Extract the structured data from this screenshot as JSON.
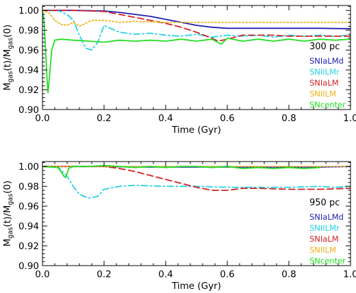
{
  "chart_data": [
    {
      "type": "line",
      "panel_label": "300 pc",
      "xlabel": "Time (Gyr)",
      "ylabel": "M_gas(t)/M_gas(0)",
      "xlim": [
        0.0,
        1.0
      ],
      "ylim": [
        0.9,
        1.005
      ],
      "xticks": [
        0.0,
        0.2,
        0.4,
        0.6,
        0.8,
        1.0
      ],
      "xtick_labels": [
        "0.0",
        "0.2",
        "0.4",
        "0.6",
        "0.8",
        "1.0"
      ],
      "yticks": [
        0.9,
        0.92,
        0.94,
        0.96,
        0.98,
        1.0
      ],
      "ytick_labels": [
        "0.90",
        "0.92",
        "0.94",
        "0.96",
        "0.98",
        "1.00"
      ],
      "legend_placement": "bottom-right",
      "series": [
        {
          "name": "SNIaLMd",
          "color": "#1f1fb4",
          "style": "solid",
          "points": [
            [
              0.0,
              1.0
            ],
            [
              0.1,
              1.0
            ],
            [
              0.2,
              0.9995
            ],
            [
              0.25,
              0.998
            ],
            [
              0.3,
              0.996
            ],
            [
              0.35,
              0.994
            ],
            [
              0.4,
              0.991
            ],
            [
              0.45,
              0.988
            ],
            [
              0.5,
              0.985
            ],
            [
              0.55,
              0.983
            ],
            [
              0.6,
              0.982
            ],
            [
              0.7,
              0.982
            ],
            [
              0.8,
              0.982
            ],
            [
              0.9,
              0.982
            ],
            [
              1.0,
              0.9815
            ]
          ]
        },
        {
          "name": "SNIILMr",
          "color": "#22d3e6",
          "style": "dashdot",
          "points": [
            [
              0.0,
              1.0
            ],
            [
              0.05,
              1.0
            ],
            [
              0.08,
              0.996
            ],
            [
              0.1,
              0.99
            ],
            [
              0.12,
              0.975
            ],
            [
              0.14,
              0.962
            ],
            [
              0.16,
              0.96
            ],
            [
              0.18,
              0.968
            ],
            [
              0.2,
              0.985
            ],
            [
              0.22,
              0.982
            ],
            [
              0.25,
              0.978
            ],
            [
              0.3,
              0.976
            ],
            [
              0.35,
              0.977
            ],
            [
              0.4,
              0.975
            ],
            [
              0.45,
              0.974
            ],
            [
              0.5,
              0.976
            ],
            [
              0.55,
              0.973
            ],
            [
              0.6,
              0.975
            ],
            [
              0.65,
              0.974
            ],
            [
              0.7,
              0.975
            ],
            [
              0.75,
              0.973
            ],
            [
              0.8,
              0.975
            ],
            [
              0.85,
              0.974
            ],
            [
              0.9,
              0.975
            ],
            [
              0.95,
              0.974
            ],
            [
              1.0,
              0.975
            ]
          ]
        },
        {
          "name": "SNIaLM",
          "color": "#d42020",
          "style": "dashed",
          "points": [
            [
              0.0,
              1.0
            ],
            [
              0.1,
              1.0
            ],
            [
              0.2,
              0.999
            ],
            [
              0.25,
              0.996
            ],
            [
              0.3,
              0.993
            ],
            [
              0.35,
              0.99
            ],
            [
              0.4,
              0.987
            ],
            [
              0.45,
              0.983
            ],
            [
              0.5,
              0.978
            ],
            [
              0.55,
              0.972
            ],
            [
              0.57,
              0.969
            ],
            [
              0.6,
              0.971
            ],
            [
              0.65,
              0.975
            ],
            [
              0.7,
              0.975
            ],
            [
              0.75,
              0.975
            ],
            [
              0.8,
              0.974
            ],
            [
              0.85,
              0.974
            ],
            [
              0.9,
              0.974
            ],
            [
              0.95,
              0.974
            ],
            [
              1.0,
              0.974
            ]
          ]
        },
        {
          "name": "SNIILM",
          "color": "#f0b01a",
          "style": "dotted",
          "points": [
            [
              0.0,
              1.0
            ],
            [
              0.02,
              0.998
            ],
            [
              0.04,
              0.99
            ],
            [
              0.06,
              0.986
            ],
            [
              0.08,
              0.985
            ],
            [
              0.1,
              0.988
            ],
            [
              0.12,
              0.984
            ],
            [
              0.14,
              0.987
            ],
            [
              0.16,
              0.99
            ],
            [
              0.2,
              0.99
            ],
            [
              0.25,
              0.988
            ],
            [
              0.3,
              0.989
            ],
            [
              0.4,
              0.988
            ],
            [
              0.5,
              0.988
            ],
            [
              0.6,
              0.988
            ],
            [
              0.7,
              0.988
            ],
            [
              0.8,
              0.988
            ],
            [
              0.9,
              0.988
            ],
            [
              1.0,
              0.988
            ]
          ]
        },
        {
          "name": "SNcenter",
          "color": "#22dd22",
          "style": "solid",
          "points": [
            [
              0.0,
              1.0
            ],
            [
              0.005,
              0.99
            ],
            [
              0.01,
              0.96
            ],
            [
              0.015,
              0.93
            ],
            [
              0.018,
              0.917
            ],
            [
              0.022,
              0.93
            ],
            [
              0.03,
              0.96
            ],
            [
              0.04,
              0.97
            ],
            [
              0.06,
              0.971
            ],
            [
              0.1,
              0.97
            ],
            [
              0.15,
              0.969
            ],
            [
              0.2,
              0.968
            ],
            [
              0.25,
              0.97
            ],
            [
              0.3,
              0.969
            ],
            [
              0.35,
              0.97
            ],
            [
              0.4,
              0.969
            ],
            [
              0.45,
              0.971
            ],
            [
              0.5,
              0.969
            ],
            [
              0.55,
              0.971
            ],
            [
              0.58,
              0.966
            ],
            [
              0.6,
              0.972
            ],
            [
              0.65,
              0.969
            ],
            [
              0.7,
              0.971
            ],
            [
              0.75,
              0.969
            ],
            [
              0.8,
              0.971
            ],
            [
              0.85,
              0.969
            ],
            [
              0.9,
              0.971
            ],
            [
              0.95,
              0.97
            ],
            [
              1.0,
              0.971
            ]
          ]
        }
      ]
    },
    {
      "type": "line",
      "panel_label": "950 pc",
      "xlabel": "Time (Gyr)",
      "ylabel": "M_gas(t)/M_gas(0)",
      "xlim": [
        0.0,
        1.0
      ],
      "ylim": [
        0.9,
        1.005
      ],
      "xticks": [
        0.0,
        0.2,
        0.4,
        0.6,
        0.8,
        1.0
      ],
      "xtick_labels": [
        "0.0",
        "0.2",
        "0.4",
        "0.6",
        "0.8",
        "1.0"
      ],
      "yticks": [
        0.9,
        0.92,
        0.94,
        0.96,
        0.98,
        1.0
      ],
      "ytick_labels": [
        "0.90",
        "0.92",
        "0.94",
        "0.96",
        "0.98",
        "1.00"
      ],
      "legend_placement": "bottom-right",
      "series": [
        {
          "name": "SNIaLMd",
          "color": "#1f1fb4",
          "style": "solid",
          "points": [
            [
              0.0,
              1.0
            ],
            [
              0.1,
              1.0
            ],
            [
              0.2,
              1.0
            ],
            [
              0.3,
              0.9995
            ],
            [
              0.4,
              0.9995
            ],
            [
              0.5,
              0.9995
            ],
            [
              0.6,
              0.9995
            ],
            [
              0.7,
              0.9995
            ],
            [
              0.8,
              0.9995
            ],
            [
              0.9,
              0.9995
            ],
            [
              1.0,
              1.0
            ]
          ]
        },
        {
          "name": "SNIILMr",
          "color": "#22d3e6",
          "style": "dashdot",
          "points": [
            [
              0.0,
              1.0
            ],
            [
              0.05,
              1.0
            ],
            [
              0.08,
              0.99
            ],
            [
              0.1,
              0.98
            ],
            [
              0.12,
              0.972
            ],
            [
              0.15,
              0.968
            ],
            [
              0.18,
              0.97
            ],
            [
              0.2,
              0.977
            ],
            [
              0.25,
              0.98
            ],
            [
              0.3,
              0.981
            ],
            [
              0.4,
              0.98
            ],
            [
              0.5,
              0.98
            ],
            [
              0.6,
              0.979
            ],
            [
              0.7,
              0.979
            ],
            [
              0.8,
              0.979
            ],
            [
              0.9,
              0.98
            ],
            [
              0.95,
              0.979
            ],
            [
              1.0,
              0.98
            ]
          ]
        },
        {
          "name": "SNIaLM",
          "color": "#d42020",
          "style": "dashed",
          "points": [
            [
              0.0,
              1.0
            ],
            [
              0.1,
              1.0
            ],
            [
              0.2,
              1.0
            ],
            [
              0.25,
              0.998
            ],
            [
              0.3,
              0.995
            ],
            [
              0.35,
              0.991
            ],
            [
              0.4,
              0.987
            ],
            [
              0.45,
              0.983
            ],
            [
              0.5,
              0.979
            ],
            [
              0.55,
              0.976
            ],
            [
              0.6,
              0.976
            ],
            [
              0.65,
              0.978
            ],
            [
              0.7,
              0.978
            ],
            [
              0.8,
              0.977
            ],
            [
              0.9,
              0.977
            ],
            [
              1.0,
              0.978
            ]
          ]
        },
        {
          "name": "SNIILM",
          "color": "#f0b01a",
          "style": "dotted",
          "points": [
            [
              0.0,
              1.0
            ],
            [
              0.1,
              1.0
            ],
            [
              0.2,
              1.0
            ],
            [
              0.3,
              1.0
            ],
            [
              0.4,
              1.0
            ],
            [
              0.5,
              1.0
            ],
            [
              0.6,
              1.0
            ],
            [
              0.7,
              1.0
            ],
            [
              0.8,
              1.0
            ],
            [
              0.9,
              1.0
            ],
            [
              1.0,
              1.0
            ]
          ]
        },
        {
          "name": "SNcenter",
          "color": "#22dd22",
          "style": "solid",
          "points": [
            [
              0.0,
              1.0
            ],
            [
              0.05,
              0.999
            ],
            [
              0.06,
              0.995
            ],
            [
              0.07,
              0.99
            ],
            [
              0.075,
              0.989
            ],
            [
              0.08,
              0.993
            ],
            [
              0.085,
              0.998
            ],
            [
              0.1,
              1.0
            ],
            [
              0.15,
              1.0
            ],
            [
              0.2,
              1.001
            ],
            [
              0.25,
              1.0
            ],
            [
              0.3,
              0.999
            ],
            [
              0.35,
              1.0
            ],
            [
              0.4,
              0.999
            ],
            [
              0.45,
              1.0
            ],
            [
              0.5,
              1.0
            ],
            [
              0.55,
              0.999
            ],
            [
              0.6,
              1.0
            ],
            [
              0.65,
              0.998
            ],
            [
              0.7,
              0.999
            ],
            [
              0.75,
              0.998
            ],
            [
              0.8,
              0.999
            ],
            [
              0.85,
              0.998
            ],
            [
              0.9,
              0.999
            ]
          ]
        }
      ]
    }
  ]
}
